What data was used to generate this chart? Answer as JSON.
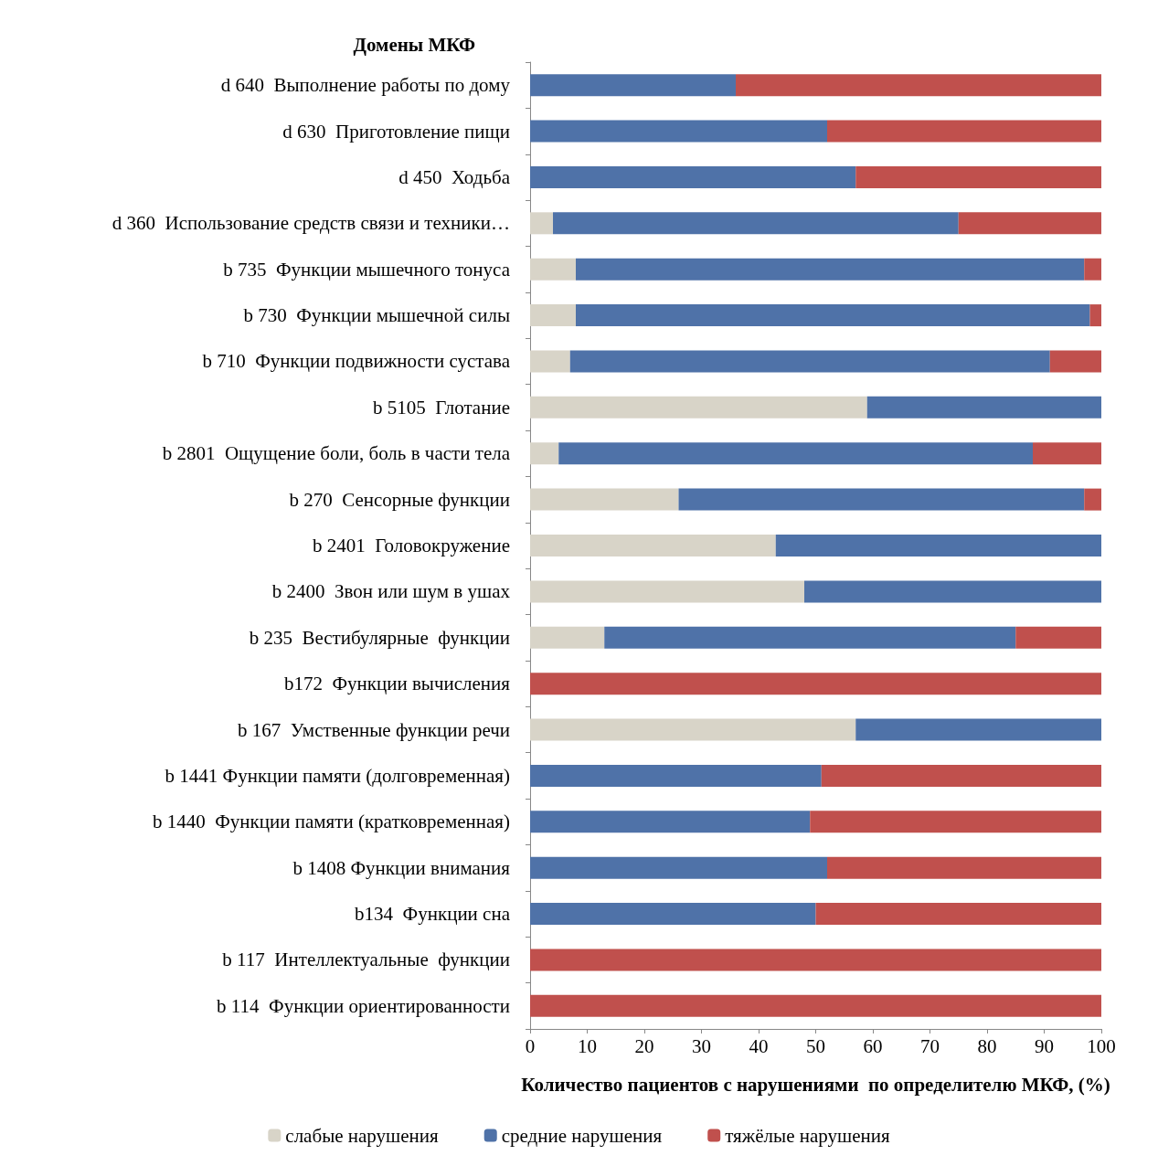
{
  "chart_data": {
    "type": "bar",
    "orientation": "horizontal",
    "stacked": true,
    "ylabel": "Домены МКФ",
    "xlabel": "Количество пациентов с нарушениями  по определителю МКФ, (%)",
    "categories": [
      "d 640  Выполнение работы по дому",
      "d 630  Приготовление пищи",
      "d 450  Ходьба",
      "d 360  Использование средств связи и техники…",
      "b 735  Функции мышечного тонуса",
      "b 730  Функции мышечной силы",
      "b 710  Функции подвижности сустава",
      "b 5105  Глотание",
      "b 2801  Ощущение боли, боль в части тела",
      "b 270  Сенсорные функции",
      "b 2401  Головокружение",
      "b 2400  Звон или шум в ушах",
      "b 235  Вестибулярные  функции",
      "b172  Функции вычисления",
      "b 167  Умственные функции речи",
      "b 1441 Функции памяти (долговременная)",
      "b 1440  Функции памяти (кратковременная)",
      "b 1408 Функции внимания",
      "b134  Функции сна",
      "b 117  Интеллектуальные  функции",
      "b 114  Функции ориентированности"
    ],
    "series": [
      {
        "name": "слабые нарушения",
        "color": "#d8d4c8",
        "values": [
          0,
          0,
          0,
          4,
          8,
          8,
          7,
          59,
          5,
          26,
          43,
          48,
          13,
          0,
          57,
          0,
          0,
          0,
          0,
          0,
          0
        ]
      },
      {
        "name": "средние нарушения",
        "color": "#4f72a8",
        "values": [
          36,
          52,
          57,
          71,
          89,
          90,
          84,
          41,
          83,
          71,
          57,
          52,
          72,
          0,
          43,
          51,
          49,
          52,
          50,
          0,
          0
        ]
      },
      {
        "name": "тяжёлые нарушения",
        "color": "#c0504d",
        "values": [
          64,
          48,
          43,
          25,
          3,
          2,
          9,
          0,
          12,
          3,
          0,
          0,
          15,
          100,
          0,
          49,
          51,
          48,
          50,
          100,
          100
        ]
      }
    ],
    "xlim": [
      0,
      100
    ],
    "xticks": [
      0,
      10,
      20,
      30,
      40,
      50,
      60,
      70,
      80,
      90,
      100
    ],
    "grid": false,
    "legend": "bottom"
  }
}
